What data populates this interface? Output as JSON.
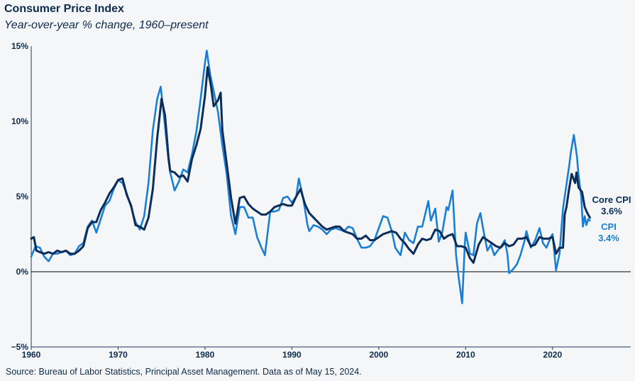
{
  "header": {
    "title": "Consumer Price Index",
    "subtitle": "Year-over-year % change, 1960–present"
  },
  "footer": {
    "source": "Source: Bureau of Labor Statistics, Principal Asset Management. Data as of May 15, 2024."
  },
  "colors": {
    "core": "#0b2d57",
    "cpi": "#1a7fd4",
    "zero": "#000000",
    "axis": "#1d3557"
  },
  "chart_data": {
    "type": "line",
    "title": "Consumer Price Index",
    "subtitle": "Year-over-year % change, 1960–present",
    "xlabel": "",
    "ylabel": "",
    "xlim": [
      1960,
      2029
    ],
    "ylim": [
      -5,
      15
    ],
    "x_ticks": [
      1960,
      1970,
      1980,
      1990,
      2000,
      2010,
      2020
    ],
    "x_tick_labels": [
      "1960",
      "1970",
      "1980",
      "1990",
      "2000",
      "2010",
      "2020"
    ],
    "y_ticks": [
      -5,
      0,
      5,
      10,
      15
    ],
    "y_tick_labels": [
      "−5%",
      "0%",
      "5%",
      "10%",
      "15%"
    ],
    "end_labels": [
      {
        "series": "Core CPI",
        "name": "Core CPI",
        "value": "3.6%"
      },
      {
        "series": "CPI",
        "name": "CPI",
        "value": "3.4%"
      }
    ],
    "series": [
      {
        "name": "CPI",
        "points": [
          [
            1960,
            1.0
          ],
          [
            1960.5,
            1.7
          ],
          [
            1961,
            1.6
          ],
          [
            1961.5,
            1.0
          ],
          [
            1962,
            0.7
          ],
          [
            1962.5,
            1.2
          ],
          [
            1963,
            1.2
          ],
          [
            1963.5,
            1.3
          ],
          [
            1964,
            1.4
          ],
          [
            1964.5,
            1.1
          ],
          [
            1965,
            1.2
          ],
          [
            1965.5,
            1.7
          ],
          [
            1966,
            1.9
          ],
          [
            1966.5,
            3.0
          ],
          [
            1967,
            3.4
          ],
          [
            1967.5,
            2.6
          ],
          [
            1968,
            3.5
          ],
          [
            1968.5,
            4.4
          ],
          [
            1969,
            4.7
          ],
          [
            1969.5,
            5.5
          ],
          [
            1970,
            6.1
          ],
          [
            1970.5,
            5.9
          ],
          [
            1971,
            5.2
          ],
          [
            1971.5,
            4.3
          ],
          [
            1972,
            3.3
          ],
          [
            1972.5,
            2.8
          ],
          [
            1973,
            3.7
          ],
          [
            1973.5,
            5.9
          ],
          [
            1974,
            9.4
          ],
          [
            1974.5,
            11.5
          ],
          [
            1974.9,
            12.3
          ],
          [
            1975.3,
            10.2
          ],
          [
            1975.8,
            7.4
          ],
          [
            1976,
            6.6
          ],
          [
            1976.5,
            5.4
          ],
          [
            1977,
            6.0
          ],
          [
            1977.5,
            6.8
          ],
          [
            1978,
            6.6
          ],
          [
            1978.5,
            7.8
          ],
          [
            1979,
            9.3
          ],
          [
            1979.5,
            11.5
          ],
          [
            1980,
            13.9
          ],
          [
            1980.2,
            14.7
          ],
          [
            1980.6,
            13.1
          ],
          [
            1981,
            12.0
          ],
          [
            1981.5,
            10.6
          ],
          [
            1982,
            8.4
          ],
          [
            1982.5,
            6.5
          ],
          [
            1983,
            3.7
          ],
          [
            1983.5,
            2.5
          ],
          [
            1984,
            4.3
          ],
          [
            1984.5,
            4.3
          ],
          [
            1985,
            3.6
          ],
          [
            1985.5,
            3.6
          ],
          [
            1986,
            2.3
          ],
          [
            1986.5,
            1.6
          ],
          [
            1986.9,
            1.1
          ],
          [
            1987.5,
            4.0
          ],
          [
            1988,
            4.0
          ],
          [
            1988.5,
            4.1
          ],
          [
            1989,
            4.9
          ],
          [
            1989.5,
            5.0
          ],
          [
            1990,
            4.6
          ],
          [
            1990.5,
            5.0
          ],
          [
            1990.8,
            6.2
          ],
          [
            1991.3,
            4.9
          ],
          [
            1991.8,
            3.1
          ],
          [
            1992,
            2.7
          ],
          [
            1992.5,
            3.1
          ],
          [
            1993,
            3.0
          ],
          [
            1993.5,
            2.8
          ],
          [
            1994,
            2.5
          ],
          [
            1994.5,
            2.8
          ],
          [
            1995,
            2.9
          ],
          [
            1995.5,
            2.8
          ],
          [
            1996,
            2.7
          ],
          [
            1996.5,
            3.0
          ],
          [
            1997,
            2.9
          ],
          [
            1997.5,
            2.2
          ],
          [
            1998,
            1.6
          ],
          [
            1998.5,
            1.6
          ],
          [
            1999,
            1.7
          ],
          [
            1999.5,
            2.1
          ],
          [
            2000,
            2.9
          ],
          [
            2000.5,
            3.7
          ],
          [
            2001,
            3.6
          ],
          [
            2001.5,
            2.7
          ],
          [
            2001.9,
            1.6
          ],
          [
            2002.5,
            1.1
          ],
          [
            2003,
            2.6
          ],
          [
            2003.5,
            2.1
          ],
          [
            2004,
            1.9
          ],
          [
            2004.5,
            3.0
          ],
          [
            2005,
            3.0
          ],
          [
            2005.7,
            4.7
          ],
          [
            2006,
            3.4
          ],
          [
            2006.5,
            4.2
          ],
          [
            2006.9,
            2.0
          ],
          [
            2007.3,
            2.6
          ],
          [
            2007.8,
            4.3
          ],
          [
            2008,
            4.1
          ],
          [
            2008.5,
            5.4
          ],
          [
            2008.9,
            1.1
          ],
          [
            2009.2,
            -0.4
          ],
          [
            2009.6,
            -2.1
          ],
          [
            2009.9,
            1.8
          ],
          [
            2010,
            2.6
          ],
          [
            2010.5,
            1.2
          ],
          [
            2010.9,
            1.1
          ],
          [
            2011.3,
            3.2
          ],
          [
            2011.7,
            3.9
          ],
          [
            2012,
            2.9
          ],
          [
            2012.5,
            1.4
          ],
          [
            2012.9,
            1.8
          ],
          [
            2013.3,
            1.1
          ],
          [
            2013.8,
            1.5
          ],
          [
            2014,
            1.6
          ],
          [
            2014.5,
            2.1
          ],
          [
            2014.8,
            1.2
          ],
          [
            2015,
            -0.1
          ],
          [
            2015.5,
            0.2
          ],
          [
            2015.9,
            0.5
          ],
          [
            2016.3,
            1.1
          ],
          [
            2016.8,
            2.1
          ],
          [
            2017,
            2.7
          ],
          [
            2017.5,
            1.6
          ],
          [
            2018,
            2.1
          ],
          [
            2018.5,
            2.9
          ],
          [
            2018.9,
            1.9
          ],
          [
            2019.3,
            1.6
          ],
          [
            2019.8,
            2.3
          ],
          [
            2020,
            2.5
          ],
          [
            2020.4,
            0.1
          ],
          [
            2020.8,
            1.2
          ],
          [
            2021.2,
            4.2
          ],
          [
            2021.5,
            5.4
          ],
          [
            2021.9,
            7.0
          ],
          [
            2022.1,
            7.9
          ],
          [
            2022.45,
            9.1
          ],
          [
            2022.8,
            7.7
          ],
          [
            2023,
            6.4
          ],
          [
            2023.3,
            5.0
          ],
          [
            2023.5,
            3.0
          ],
          [
            2023.7,
            3.7
          ],
          [
            2023.9,
            3.1
          ],
          [
            2024.1,
            3.5
          ],
          [
            2024.3,
            3.4
          ]
        ]
      },
      {
        "name": "Core CPI",
        "points": [
          [
            1960,
            2.2
          ],
          [
            1960.3,
            2.3
          ],
          [
            1960.6,
            1.4
          ],
          [
            1961,
            1.3
          ],
          [
            1961.5,
            1.2
          ],
          [
            1962,
            1.3
          ],
          [
            1962.5,
            1.2
          ],
          [
            1963,
            1.4
          ],
          [
            1963.5,
            1.3
          ],
          [
            1964,
            1.4
          ],
          [
            1964.5,
            1.2
          ],
          [
            1965,
            1.2
          ],
          [
            1965.5,
            1.4
          ],
          [
            1966,
            1.7
          ],
          [
            1966.5,
            2.9
          ],
          [
            1967,
            3.3
          ],
          [
            1967.5,
            3.3
          ],
          [
            1968,
            4.1
          ],
          [
            1968.5,
            4.6
          ],
          [
            1969,
            5.2
          ],
          [
            1969.5,
            5.6
          ],
          [
            1970,
            6.1
          ],
          [
            1970.5,
            6.2
          ],
          [
            1971,
            5.1
          ],
          [
            1971.5,
            4.4
          ],
          [
            1972,
            3.1
          ],
          [
            1972.5,
            3.0
          ],
          [
            1973,
            2.8
          ],
          [
            1973.5,
            3.6
          ],
          [
            1974,
            5.5
          ],
          [
            1974.5,
            8.9
          ],
          [
            1975,
            11.5
          ],
          [
            1975.4,
            10.4
          ],
          [
            1975.8,
            7.6
          ],
          [
            1976,
            6.7
          ],
          [
            1976.5,
            6.6
          ],
          [
            1977,
            6.3
          ],
          [
            1977.5,
            6.4
          ],
          [
            1978,
            6.0
          ],
          [
            1978.5,
            7.5
          ],
          [
            1979,
            8.4
          ],
          [
            1979.5,
            9.5
          ],
          [
            1980,
            11.7
          ],
          [
            1980.3,
            13.6
          ],
          [
            1980.7,
            12.3
          ],
          [
            1981,
            11.0
          ],
          [
            1981.5,
            11.4
          ],
          [
            1981.8,
            11.9
          ],
          [
            1982,
            9.4
          ],
          [
            1982.5,
            7.2
          ],
          [
            1983,
            4.9
          ],
          [
            1983.5,
            3.2
          ],
          [
            1984,
            4.9
          ],
          [
            1984.5,
            5.0
          ],
          [
            1985,
            4.5
          ],
          [
            1985.5,
            4.2
          ],
          [
            1986,
            4.0
          ],
          [
            1986.5,
            3.8
          ],
          [
            1987,
            3.8
          ],
          [
            1987.5,
            4.0
          ],
          [
            1988,
            4.3
          ],
          [
            1988.5,
            4.4
          ],
          [
            1989,
            4.5
          ],
          [
            1989.5,
            4.4
          ],
          [
            1990,
            4.4
          ],
          [
            1990.5,
            5.0
          ],
          [
            1991,
            5.5
          ],
          [
            1991.5,
            4.5
          ],
          [
            1992,
            3.9
          ],
          [
            1992.5,
            3.6
          ],
          [
            1993,
            3.3
          ],
          [
            1993.5,
            3.0
          ],
          [
            1994,
            2.8
          ],
          [
            1994.5,
            2.9
          ],
          [
            1995,
            3.0
          ],
          [
            1995.5,
            3.0
          ],
          [
            1996,
            2.7
          ],
          [
            1996.5,
            2.6
          ],
          [
            1997,
            2.5
          ],
          [
            1997.5,
            2.2
          ],
          [
            1998,
            2.2
          ],
          [
            1998.5,
            2.4
          ],
          [
            1999,
            2.1
          ],
          [
            1999.5,
            2.1
          ],
          [
            2000,
            2.3
          ],
          [
            2000.5,
            2.5
          ],
          [
            2001,
            2.6
          ],
          [
            2001.5,
            2.7
          ],
          [
            2002,
            2.6
          ],
          [
            2002.5,
            2.2
          ],
          [
            2003,
            1.9
          ],
          [
            2003.5,
            1.5
          ],
          [
            2004,
            1.2
          ],
          [
            2004.5,
            1.8
          ],
          [
            2005,
            2.2
          ],
          [
            2005.5,
            2.1
          ],
          [
            2006,
            2.2
          ],
          [
            2006.5,
            2.8
          ],
          [
            2007,
            2.7
          ],
          [
            2007.5,
            2.2
          ],
          [
            2008,
            2.4
          ],
          [
            2008.5,
            2.5
          ],
          [
            2009,
            1.7
          ],
          [
            2009.5,
            1.7
          ],
          [
            2010,
            1.6
          ],
          [
            2010.5,
            0.9
          ],
          [
            2010.9,
            0.6
          ],
          [
            2011.5,
            1.8
          ],
          [
            2012,
            2.3
          ],
          [
            2012.5,
            2.1
          ],
          [
            2013,
            1.9
          ],
          [
            2013.5,
            1.7
          ],
          [
            2014,
            1.6
          ],
          [
            2014.5,
            1.9
          ],
          [
            2015,
            1.7
          ],
          [
            2015.5,
            1.8
          ],
          [
            2016,
            2.2
          ],
          [
            2016.5,
            2.2
          ],
          [
            2017,
            2.3
          ],
          [
            2017.5,
            1.7
          ],
          [
            2018,
            1.8
          ],
          [
            2018.5,
            2.3
          ],
          [
            2019,
            2.2
          ],
          [
            2019.5,
            2.2
          ],
          [
            2020,
            2.3
          ],
          [
            2020.4,
            1.2
          ],
          [
            2020.8,
            1.6
          ],
          [
            2021.2,
            1.6
          ],
          [
            2021.4,
            3.8
          ],
          [
            2021.6,
            4.3
          ],
          [
            2021.9,
            5.5
          ],
          [
            2022.2,
            6.5
          ],
          [
            2022.6,
            5.9
          ],
          [
            2022.75,
            6.6
          ],
          [
            2023,
            5.6
          ],
          [
            2023.4,
            5.3
          ],
          [
            2023.7,
            4.3
          ],
          [
            2024,
            3.9
          ],
          [
            2024.3,
            3.6
          ]
        ]
      }
    ]
  }
}
